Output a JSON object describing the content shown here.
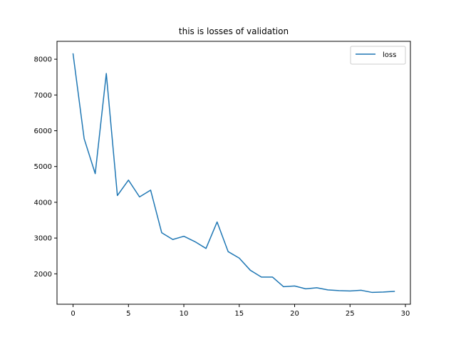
{
  "chart_data": {
    "type": "line",
    "title": "this is losses of validation",
    "xlabel": "",
    "ylabel": "",
    "xlim": [
      -1.45,
      30.45
    ],
    "ylim": [
      1150,
      8500
    ],
    "xticks": [
      0,
      5,
      10,
      15,
      20,
      25,
      30
    ],
    "yticks": [
      2000,
      3000,
      4000,
      5000,
      6000,
      7000,
      8000
    ],
    "grid": false,
    "legend_position": "top-right",
    "series": [
      {
        "name": "loss",
        "color": "#1f77b4",
        "x": [
          0,
          1,
          2,
          3,
          4,
          5,
          6,
          7,
          8,
          9,
          10,
          11,
          12,
          13,
          14,
          15,
          16,
          17,
          18,
          19,
          20,
          21,
          22,
          23,
          24,
          25,
          26,
          27,
          28,
          29
        ],
        "values": [
          8150,
          5780,
          4800,
          7600,
          4190,
          4620,
          4150,
          4340,
          3150,
          2960,
          3050,
          2900,
          2710,
          3450,
          2620,
          2440,
          2100,
          1910,
          1910,
          1640,
          1660,
          1580,
          1610,
          1550,
          1530,
          1520,
          1540,
          1480,
          1490,
          1510
        ]
      }
    ]
  }
}
